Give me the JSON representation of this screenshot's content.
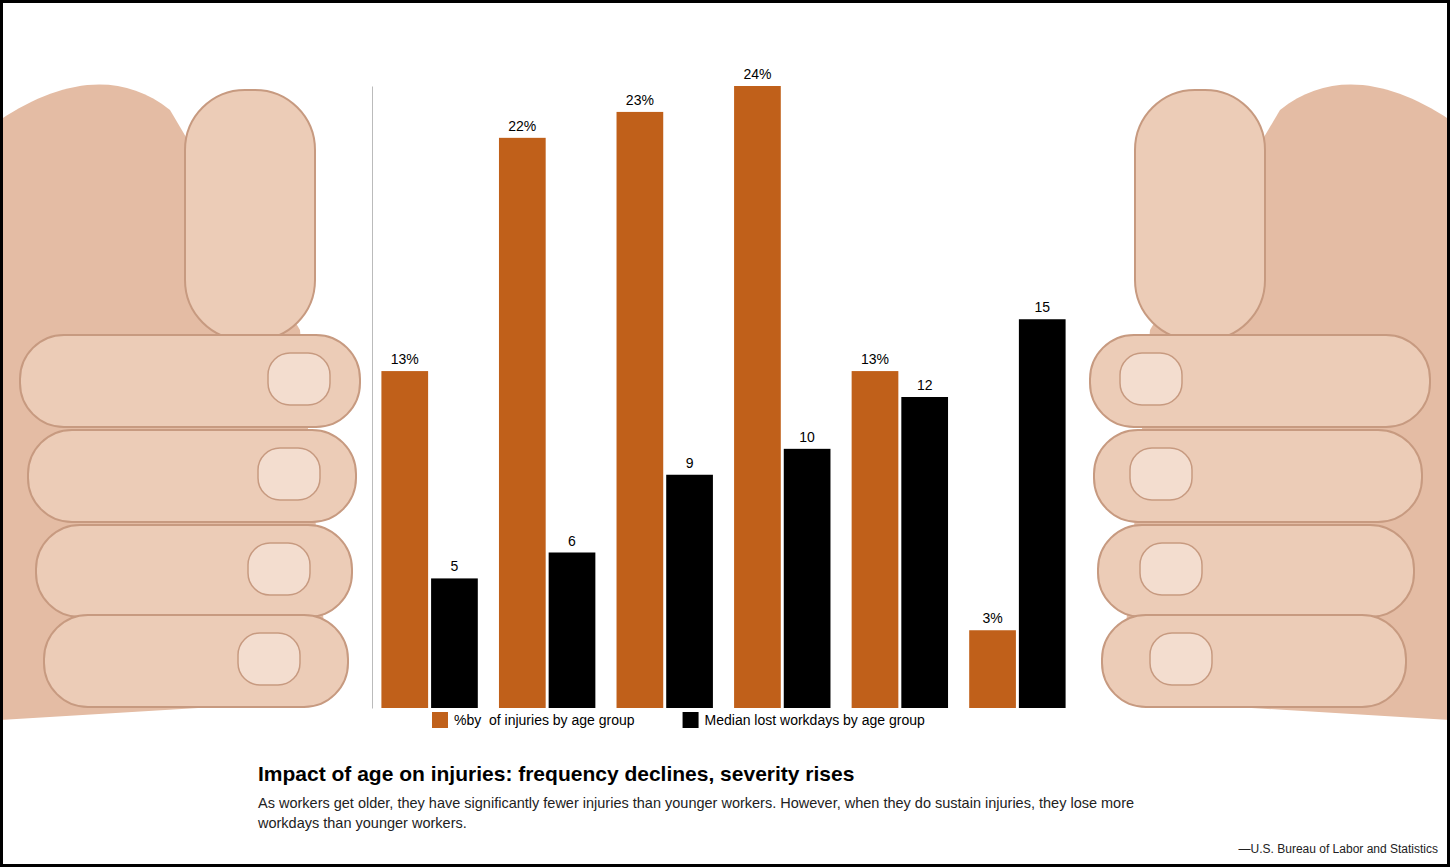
{
  "chart_data": {
    "type": "bar",
    "title": "Impact of age on injuries: frequency declines, severity rises",
    "subtitle": "As workers get older, they have significantly fewer injuries than younger workers. However, when they do sustain injuries, they lose more workdays than younger workers.",
    "source": "—U.S. Bureau of Labor and Statistics",
    "categories": [
      null,
      null,
      null,
      null,
      null,
      null
    ],
    "series": [
      {
        "name": "%by  of injuries by age group",
        "color": "#c0601a",
        "values": [
          13,
          22,
          23,
          24,
          13,
          3
        ],
        "value_labels": [
          "13%",
          "22%",
          "23%",
          "24%",
          "13%",
          "3%"
        ]
      },
      {
        "name": "Median lost workdays by age group",
        "color": "#000000",
        "values": [
          5,
          6,
          9,
          10,
          12,
          15
        ]
      }
    ],
    "ylim": [
      0,
      24
    ],
    "tick_labels": false,
    "data_labels": true,
    "legend": "bottom",
    "grid": false
  }
}
